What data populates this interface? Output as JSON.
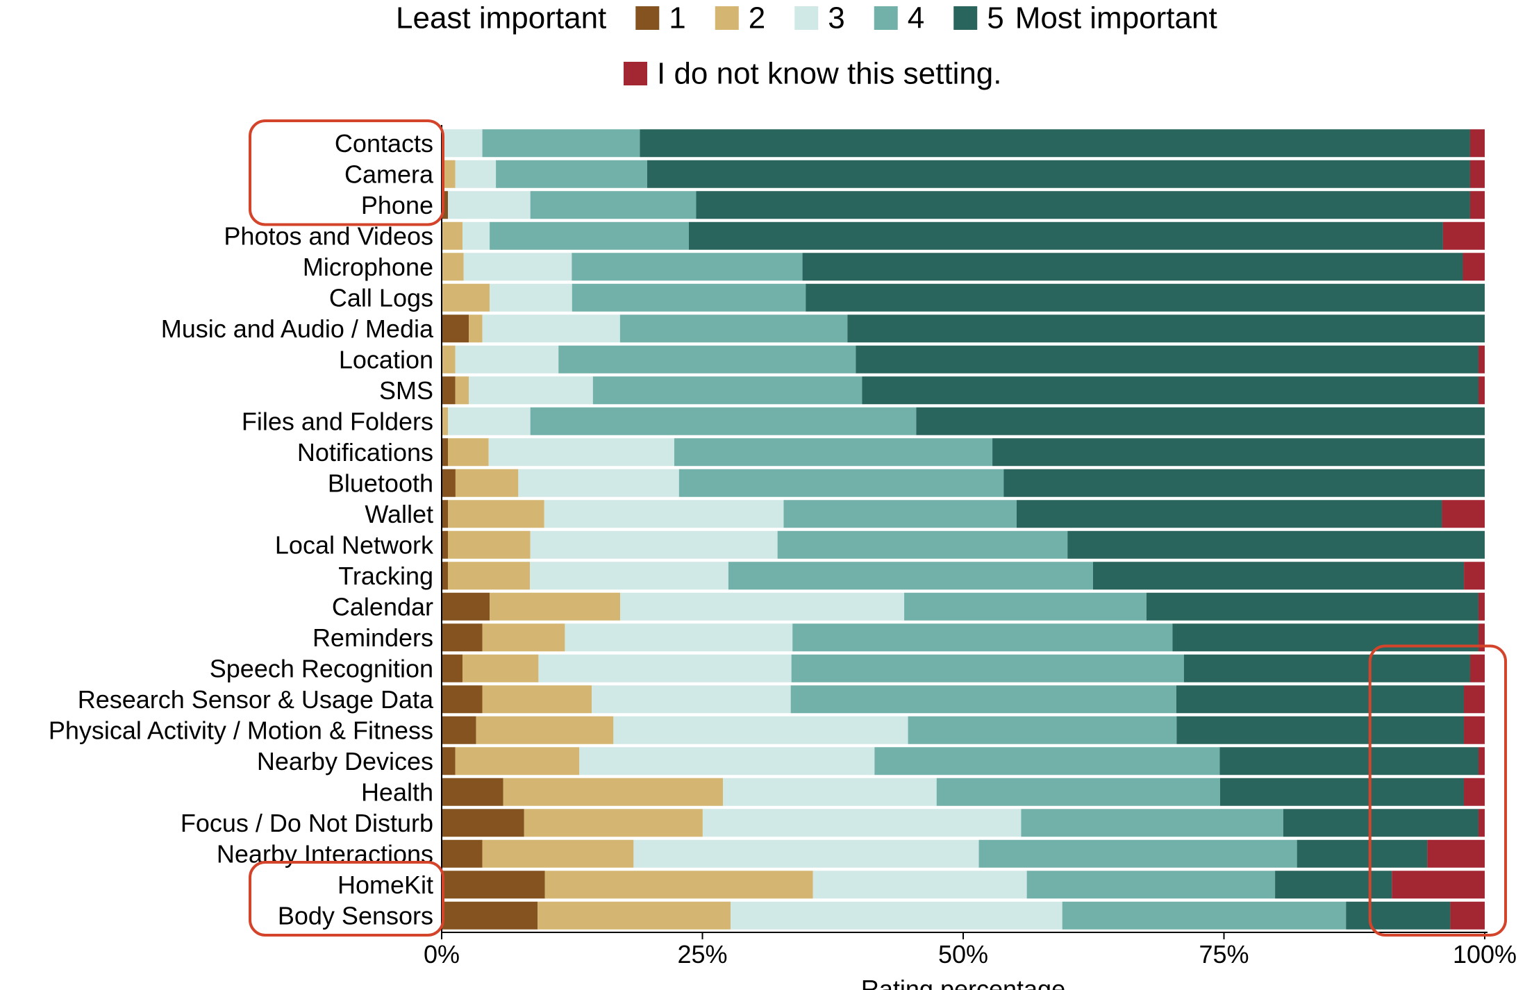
{
  "chart_data": {
    "type": "bar",
    "orientation": "horizontal",
    "stacked": true,
    "normalized": true,
    "xlabel": "Rating percentage",
    "xlim": [
      0,
      100
    ],
    "xticks": [
      "0%",
      "25%",
      "50%",
      "75%",
      "100%"
    ],
    "legend": {
      "placement": "top",
      "left_label": "Least important",
      "right_label": "Most important",
      "entries": [
        {
          "label": "1",
          "color": "#84531f"
        },
        {
          "label": "2",
          "color": "#d4b571"
        },
        {
          "label": "3",
          "color": "#d0e9e6"
        },
        {
          "label": "4",
          "color": "#72b1aa"
        },
        {
          "label": "5",
          "color": "#2a655d"
        },
        {
          "label": "I do not know this setting.",
          "color": "#a32733"
        }
      ]
    },
    "categories": [
      "Contacts",
      "Camera",
      "Phone",
      "Photos and Videos",
      "Microphone",
      "Call Logs",
      "Music and Audio / Media",
      "Location",
      "SMS",
      "Files and Folders",
      "Notifications",
      "Bluetooth",
      "Wallet",
      "Local Network",
      "Tracking",
      "Calendar",
      "Reminders",
      "Speech Recognition",
      "Research Sensor & Usage Data",
      "Physical Activity / Motion & Fitness",
      "Nearby Devices",
      "Health",
      "Focus / Do Not Disturb",
      "Nearby Interactions",
      "HomeKit",
      "Body Sensors"
    ],
    "series": [
      {
        "name": "1",
        "color": "#84531f",
        "values": [
          0,
          0,
          0.6,
          0,
          0,
          0,
          2.6,
          0,
          1.3,
          0,
          0.6,
          1.3,
          0.6,
          0.6,
          0.6,
          4.6,
          3.9,
          2,
          3.9,
          3.3,
          1.3,
          5.9,
          7.9,
          3.9,
          9.9,
          9.2
        ]
      },
      {
        "name": "2",
        "color": "#d4b571",
        "values": [
          0,
          1.3,
          0,
          2,
          2,
          4.6,
          1.3,
          1.3,
          1.3,
          0.6,
          3.9,
          5.9,
          9,
          7.9,
          7.9,
          12.5,
          7.9,
          7.3,
          10.5,
          13.2,
          11.9,
          21.1,
          17.1,
          14.5,
          25.7,
          18.5
        ]
      },
      {
        "name": "3",
        "color": "#d0e9e6",
        "values": [
          3.9,
          3.9,
          7.9,
          2.6,
          9.9,
          7.9,
          13.2,
          9.9,
          11.9,
          7.9,
          17.8,
          15.1,
          22.4,
          23.7,
          19.1,
          27.2,
          21.8,
          24.3,
          19.1,
          28.3,
          28.3,
          20.5,
          30.5,
          33.1,
          20.5,
          31.8
        ]
      },
      {
        "name": "4",
        "color": "#72b1aa",
        "values": [
          15.1,
          14.5,
          15.9,
          19.1,
          21.1,
          22.4,
          21.8,
          28.5,
          25.8,
          37,
          30.5,
          30.5,
          21.8,
          27.8,
          35.1,
          23.2,
          36.4,
          37.7,
          37,
          25.8,
          33.1,
          27.2,
          25.1,
          30.5,
          23.8,
          27.2
        ]
      },
      {
        "name": "5",
        "color": "#2a655d",
        "values": [
          79.6,
          78.9,
          74.2,
          72.3,
          60.4,
          65.1,
          61.1,
          59.7,
          59.1,
          54.5,
          47.2,
          45.2,
          39.8,
          40,
          35.7,
          31.8,
          29.3,
          27.5,
          27.6,
          27.6,
          24.8,
          23.4,
          18.7,
          12.5,
          11.2,
          10
        ]
      },
      {
        "name": "I do not know this setting.",
        "color": "#a32733",
        "values": [
          1.4,
          1.4,
          1.4,
          4,
          2,
          0,
          0,
          0.6,
          0.6,
          0,
          0,
          0,
          4,
          0,
          2,
          0.6,
          0.6,
          1.4,
          2,
          2,
          0.6,
          2,
          0.6,
          5.5,
          8.9,
          3.3
        ]
      }
    ],
    "highlights": [
      {
        "type": "category-range",
        "from": "Contacts",
        "to": "Phone",
        "color": "#d4442b"
      },
      {
        "type": "category-range",
        "from": "HomeKit",
        "to": "Body Sensors",
        "color": "#d4442b"
      },
      {
        "type": "region",
        "x_from": 89,
        "x_to": 102,
        "from": "Speech Recognition",
        "to": "Body Sensors",
        "color": "#d4442b"
      }
    ]
  }
}
